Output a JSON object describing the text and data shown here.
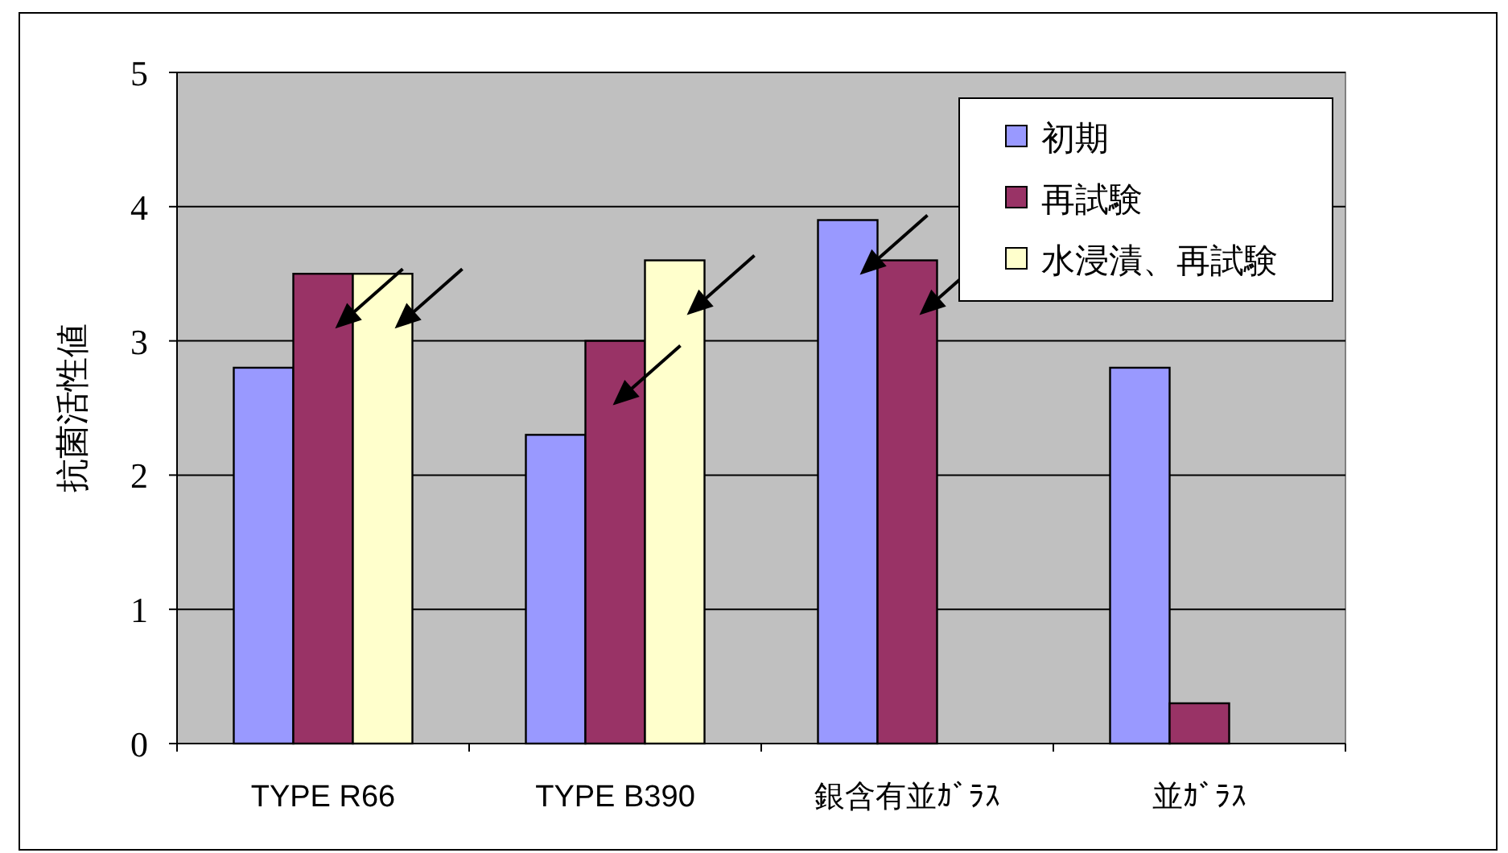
{
  "chart_data": {
    "type": "bar",
    "ylabel": "抗菌活性値",
    "categories": [
      "TYPE R66",
      "TYPE B390",
      "銀含有並ｶﾞﾗｽ",
      "並ｶﾞﾗｽ"
    ],
    "series": [
      {
        "name": "初期",
        "color": "#9999ff",
        "values": [
          2.8,
          2.3,
          3.9,
          2.8
        ]
      },
      {
        "name": "再試験",
        "color": "#993366",
        "values": [
          3.5,
          3.0,
          3.6,
          0.3
        ]
      },
      {
        "name": "水浸漬、再試験",
        "color": "#ffffcc",
        "values": [
          3.5,
          3.6,
          null,
          null
        ]
      }
    ],
    "ylim": [
      0,
      5
    ],
    "yticks": [
      0,
      1,
      2,
      3,
      4,
      5
    ],
    "grid": "y",
    "legend": "top right"
  }
}
